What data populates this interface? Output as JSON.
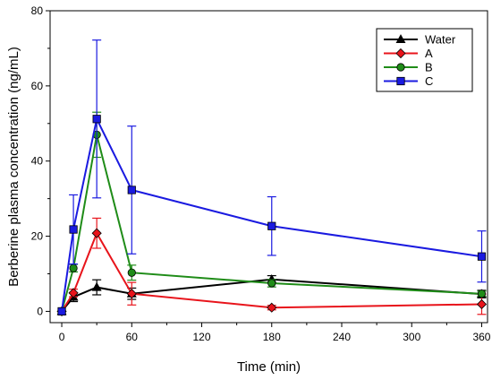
{
  "chart_data": {
    "type": "line",
    "xlabel": "Time (min)",
    "ylabel": "Berberine plasma concentration (ng/mL)",
    "xlim": [
      -10,
      365
    ],
    "ylim": [
      -3,
      80
    ],
    "xticks": [
      0,
      60,
      120,
      180,
      240,
      300,
      360
    ],
    "yticks": [
      0,
      20,
      40,
      60,
      80
    ],
    "legend_position": "top-right",
    "grid": false,
    "series": [
      {
        "name": "Water",
        "color": "#000000",
        "marker": "triangle",
        "x": [
          0,
          10,
          30,
          60,
          180,
          360
        ],
        "y": [
          0,
          3.8,
          6.4,
          4.7,
          8.5,
          4.6
        ],
        "err": [
          0,
          1.2,
          2.0,
          1.5,
          1.0,
          1.0
        ]
      },
      {
        "name": "A",
        "color": "#e8141b",
        "marker": "diamond",
        "x": [
          0,
          10,
          30,
          60,
          180,
          360
        ],
        "y": [
          0,
          4.9,
          20.8,
          4.7,
          1.0,
          1.9
        ],
        "err": [
          0,
          1.0,
          4.0,
          3.0,
          0.6,
          2.7
        ]
      },
      {
        "name": "B",
        "color": "#1f8c18",
        "marker": "circle",
        "x": [
          0,
          10,
          30,
          60,
          180,
          360
        ],
        "y": [
          0,
          11.5,
          47.0,
          10.3,
          7.5,
          4.7
        ],
        "err": [
          0,
          1.0,
          6.0,
          2.0,
          1.0,
          0.7
        ]
      },
      {
        "name": "C",
        "color": "#1a1ae0",
        "marker": "square",
        "x": [
          0,
          10,
          30,
          60,
          180,
          360
        ],
        "y": [
          0,
          21.8,
          51.2,
          32.3,
          22.7,
          14.6
        ],
        "err": [
          0,
          9.2,
          21.0,
          17.0,
          7.8,
          6.8
        ]
      }
    ]
  }
}
